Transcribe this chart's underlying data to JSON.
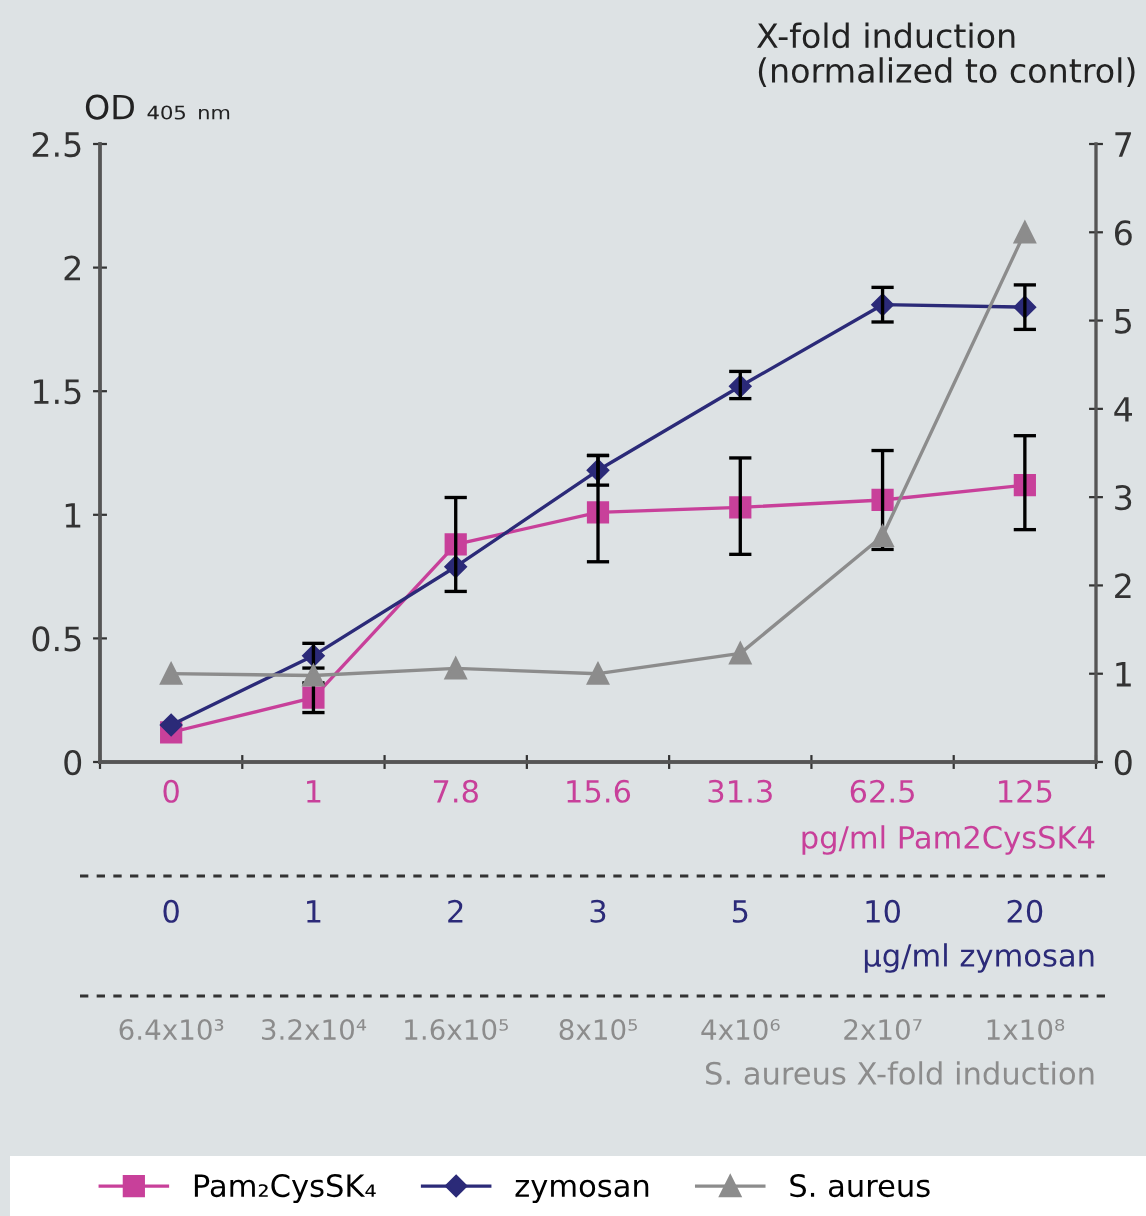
{
  "chart_data": {
    "type": "line",
    "ylabel": "OD ₄₀₅ ₙₘ",
    "y2label": "X-fold induction\n(normalized to control)",
    "xlabel": "pg/ml Pam2CysSK4",
    "categories": [
      "0",
      "1",
      "7.8",
      "15.6",
      "31.3",
      "62.5",
      "125"
    ],
    "series": [
      {
        "name": "Pam₂CysSK₄",
        "color": "#c8409a",
        "marker": "square",
        "values": [
          0.12,
          0.26,
          0.88,
          1.01,
          1.03,
          1.06,
          1.12
        ],
        "errors": [
          null,
          0.06,
          [
            0.69,
            1.07
          ],
          [
            0.81,
            1.24
          ],
          [
            0.84,
            1.23
          ],
          [
            0.86,
            1.26
          ],
          [
            0.94,
            1.32
          ]
        ]
      },
      {
        "name": "zymosan",
        "color": "#2b2a78",
        "marker": "diamond",
        "values": [
          0.15,
          0.43,
          0.79,
          1.18,
          1.52,
          1.85,
          1.84
        ],
        "errors": [
          null,
          [
            0.38,
            0.48
          ],
          null,
          [
            1.12,
            1.24
          ],
          [
            1.47,
            1.58
          ],
          [
            1.78,
            1.92
          ],
          [
            1.75,
            1.93
          ]
        ]
      },
      {
        "name": "S. aureus",
        "color": "#8c8c8c",
        "marker": "triangle",
        "axis": "y2",
        "values": [
          1.0,
          0.98,
          1.06,
          1.0,
          1.23,
          2.56,
          6.0
        ]
      }
    ],
    "ylim": [
      0,
      2.5
    ],
    "yticks": [
      0,
      0.5,
      1,
      1.5,
      2,
      2.5
    ],
    "y2lim": [
      0,
      7
    ],
    "y2ticks": [
      0,
      1,
      2,
      3,
      4,
      5,
      6,
      7
    ],
    "grid": false,
    "legend": "bottom",
    "annotations": [
      "0",
      "1",
      "2",
      "3",
      "5",
      "10",
      "20",
      "µg/ml zymosan",
      "6.4x10³",
      "3.2x10⁴",
      "1.6x10⁵",
      "8x10⁵",
      "4x10⁶",
      "2x10⁷",
      "1x10⁸",
      "S. aureus X-fold induction"
    ]
  }
}
